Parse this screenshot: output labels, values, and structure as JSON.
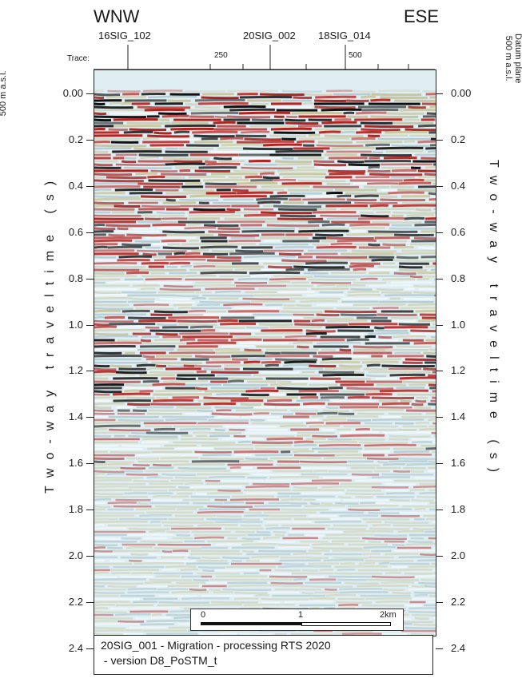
{
  "header": {
    "left_direction": "WNW",
    "right_direction": "ESE",
    "wells": [
      "16SIG_102",
      "20SIG_002",
      "18SIG_014"
    ],
    "trace_label": "Trace:",
    "trace_ticks": [
      "250",
      "500"
    ]
  },
  "axes": {
    "time_ticks": [
      "0.00",
      "0.2",
      "0.4",
      "0.6",
      "0.8",
      "1.0",
      "1.2",
      "1.4",
      "1.6",
      "1.8",
      "2.0",
      "2.2",
      "2.4"
    ],
    "ylabel": "Two-way traveltime (s)",
    "datum_line1": "Datum plane",
    "datum_line2": "500 m a.s.l."
  },
  "scale_bar": {
    "labels": [
      "0",
      "1",
      "2km"
    ]
  },
  "caption": {
    "line1": "20SIG_001 - Migration - processing RTS 2020",
    "line2": " - version D8_PoSTM_t"
  },
  "colors": {
    "positive": "#b3231f",
    "negative": "#111111",
    "weak": "#c8c6a0",
    "background": "#dfeef3"
  }
}
